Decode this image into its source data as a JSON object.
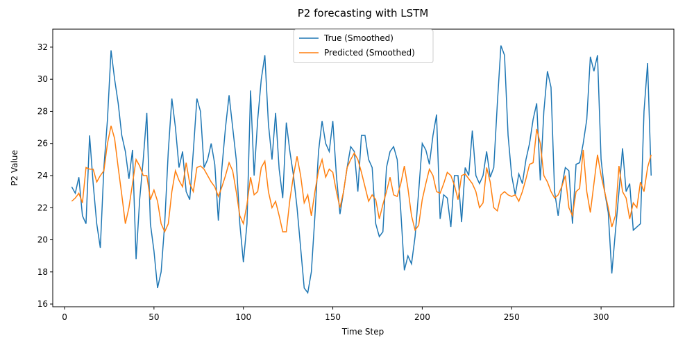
{
  "chart_data": {
    "type": "line",
    "title": "P2 forecasting with LSTM",
    "x_label": "Time Step",
    "y_label": "P2 Value",
    "x": [
      4,
      6,
      8,
      10,
      12,
      14,
      16,
      18,
      20,
      22,
      24,
      26,
      28,
      30,
      32,
      34,
      36,
      38,
      40,
      42,
      44,
      46,
      48,
      50,
      52,
      54,
      56,
      58,
      60,
      62,
      64,
      66,
      68,
      70,
      72,
      74,
      76,
      78,
      80,
      82,
      84,
      86,
      88,
      90,
      92,
      94,
      96,
      98,
      100,
      102,
      104,
      106,
      108,
      110,
      112,
      114,
      116,
      118,
      120,
      122,
      124,
      126,
      128,
      130,
      132,
      134,
      136,
      138,
      140,
      142,
      144,
      146,
      148,
      150,
      152,
      154,
      156,
      158,
      160,
      162,
      164,
      166,
      168,
      170,
      172,
      174,
      176,
      178,
      180,
      182,
      184,
      186,
      188,
      190,
      192,
      194,
      196,
      198,
      200,
      202,
      204,
      206,
      208,
      210,
      212,
      214,
      216,
      218,
      220,
      222,
      224,
      226,
      228,
      230,
      232,
      234,
      236,
      238,
      240,
      242,
      244,
      246,
      248,
      250,
      252,
      254,
      256,
      258,
      260,
      262,
      264,
      266,
      268,
      270,
      272,
      274,
      276,
      278,
      280,
      282,
      284,
      286,
      288,
      290,
      292,
      294,
      296,
      298,
      300,
      302,
      304,
      306,
      308,
      310,
      312,
      314,
      316,
      318,
      320,
      322,
      324,
      326,
      328
    ],
    "series": [
      {
        "name": "True (Smoothed)",
        "color": "#1f77b4",
        "values": [
          23.3,
          22.9,
          23.9,
          21.5,
          21.0,
          26.5,
          23.5,
          21.0,
          19.5,
          24.5,
          27.5,
          31.8,
          30.0,
          28.5,
          26.5,
          25.5,
          23.8,
          25.6,
          18.8,
          22.5,
          25.0,
          27.9,
          21.0,
          19.3,
          17.0,
          18.0,
          21.0,
          25.5,
          28.8,
          27.0,
          24.5,
          25.5,
          23.0,
          22.5,
          25.5,
          28.8,
          28.0,
          24.5,
          25.0,
          26.0,
          24.7,
          21.2,
          24.5,
          27.0,
          29.0,
          27.0,
          25.0,
          21.0,
          18.6,
          21.0,
          29.3,
          24.0,
          27.5,
          30.0,
          31.5,
          27.2,
          25.0,
          27.9,
          24.4,
          22.6,
          27.3,
          25.5,
          24.0,
          22.0,
          19.5,
          17.0,
          16.7,
          18.0,
          21.5,
          25.5,
          27.4,
          26.0,
          25.5,
          27.4,
          24.0,
          21.6,
          23.0,
          24.5,
          25.8,
          25.5,
          23.0,
          26.5,
          26.5,
          25.0,
          24.5,
          21.0,
          20.2,
          20.5,
          24.5,
          25.5,
          25.8,
          25.0,
          21.8,
          18.1,
          19.0,
          18.5,
          20.2,
          23.0,
          26.0,
          25.6,
          24.7,
          26.5,
          27.8,
          21.3,
          22.8,
          22.6,
          20.8,
          24.0,
          24.0,
          21.1,
          24.5,
          24.0,
          26.8,
          24.0,
          23.5,
          24.0,
          25.5,
          23.9,
          24.5,
          28.5,
          32.1,
          31.5,
          26.5,
          24.0,
          22.8,
          24.1,
          23.5,
          25.0,
          26.0,
          27.5,
          28.5,
          23.7,
          28.0,
          30.5,
          29.5,
          23.0,
          21.5,
          23.3,
          24.5,
          24.3,
          21.0,
          24.7,
          24.8,
          26.0,
          27.5,
          31.4,
          30.5,
          31.5,
          25.0,
          23.0,
          21.7,
          17.9,
          20.5,
          23.0,
          25.7,
          23.0,
          23.5,
          20.6,
          20.8,
          21.0,
          28.0,
          31.0,
          24.0
        ]
      },
      {
        "name": "Predicted (Smoothed)",
        "color": "#ff7f0e",
        "values": [
          22.4,
          22.6,
          22.9,
          22.3,
          24.5,
          24.4,
          24.4,
          23.6,
          24.0,
          24.3,
          26.0,
          27.1,
          26.3,
          24.5,
          22.8,
          21.0,
          22.0,
          23.5,
          25.0,
          24.6,
          24.0,
          24.0,
          22.5,
          23.1,
          22.4,
          21.0,
          20.5,
          21.0,
          23.0,
          24.3,
          23.7,
          23.3,
          24.8,
          23.5,
          23.0,
          24.5,
          24.6,
          24.4,
          24.0,
          23.6,
          23.3,
          22.7,
          23.3,
          24.0,
          24.8,
          24.3,
          23.0,
          21.5,
          21.0,
          22.2,
          23.9,
          22.8,
          23.0,
          24.5,
          24.9,
          23.0,
          22.0,
          22.4,
          21.5,
          20.5,
          20.5,
          22.5,
          24.0,
          25.2,
          24.0,
          22.3,
          22.8,
          21.5,
          23.0,
          24.3,
          25.0,
          23.9,
          24.4,
          24.2,
          23.0,
          22.0,
          23.0,
          24.5,
          25.0,
          25.4,
          25.0,
          24.2,
          23.3,
          22.4,
          22.8,
          22.5,
          21.3,
          22.2,
          23.0,
          23.9,
          22.8,
          22.7,
          23.5,
          24.6,
          23.2,
          21.5,
          20.6,
          20.9,
          22.5,
          23.5,
          24.4,
          24.0,
          23.0,
          22.9,
          23.5,
          24.2,
          24.0,
          23.4,
          22.5,
          24.0,
          24.1,
          23.8,
          23.5,
          23.0,
          22.0,
          22.3,
          24.5,
          23.6,
          22.0,
          21.8,
          22.8,
          23.0,
          22.8,
          22.7,
          22.8,
          22.4,
          23.0,
          23.8,
          24.7,
          24.8,
          26.9,
          26.0,
          24.0,
          23.6,
          23.0,
          22.6,
          22.8,
          23.3,
          24.0,
          22.0,
          21.5,
          23.0,
          23.2,
          25.6,
          23.0,
          21.7,
          23.5,
          25.3,
          24.0,
          23.0,
          22.0,
          20.8,
          21.5,
          24.6,
          23.0,
          22.6,
          21.3,
          22.3,
          22.0,
          23.6,
          23.0,
          24.5,
          25.3
        ]
      }
    ],
    "xlim": [
      -6.6,
      340.7
    ],
    "ylim": [
      15.83,
      33.12
    ],
    "xticks": [
      0,
      50,
      100,
      150,
      200,
      250,
      300
    ],
    "yticks": [
      16,
      18,
      20,
      22,
      24,
      26,
      28,
      30,
      32
    ],
    "legend": "upper center"
  }
}
